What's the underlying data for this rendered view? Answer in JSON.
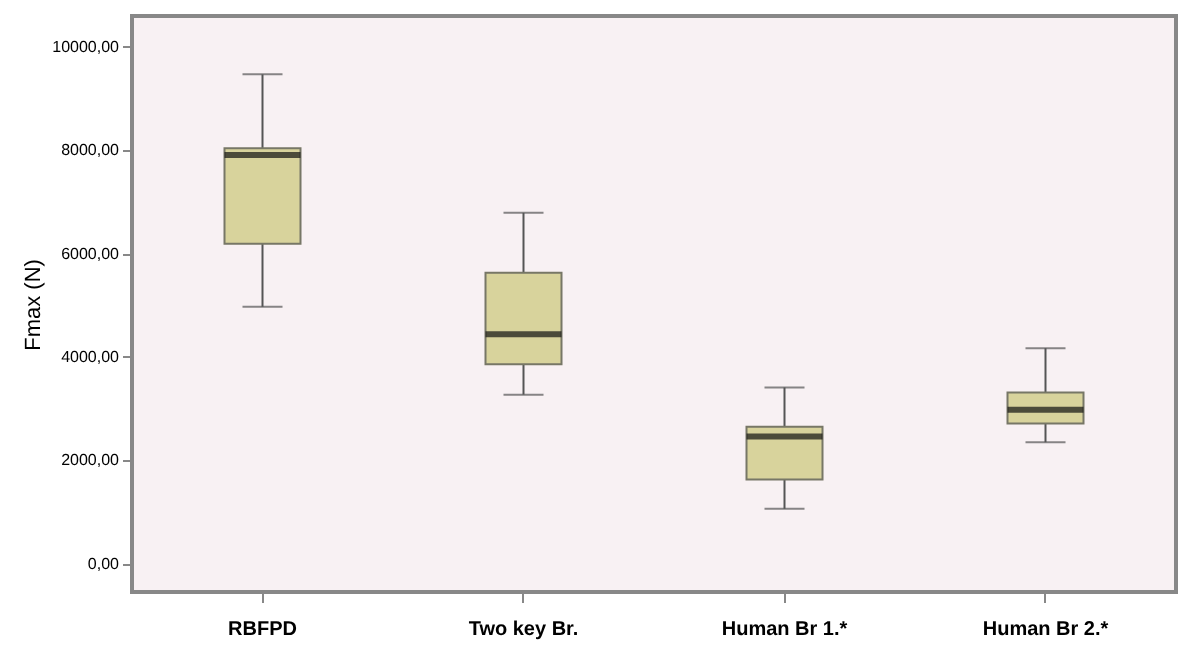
{
  "chart_data": {
    "type": "box",
    "ylabel": "Fmax (N)",
    "categories": [
      "RBFPD",
      "Two key Br.",
      "Human Br 1.*",
      "Human Br 2.*"
    ],
    "boxes": [
      {
        "low": 4970,
        "q1": 6190,
        "median": 7910,
        "q3": 8040,
        "high": 9470
      },
      {
        "low": 3270,
        "q1": 3860,
        "median": 4440,
        "q3": 5630,
        "high": 6790
      },
      {
        "low": 1060,
        "q1": 1630,
        "median": 2460,
        "q3": 2650,
        "high": 3410
      },
      {
        "low": 2350,
        "q1": 2710,
        "median": 2980,
        "q3": 3310,
        "high": 4170
      }
    ],
    "color": "#d8d39c",
    "ylim": [
      -550,
      10600
    ],
    "yticks": [
      {
        "value": 0,
        "label": "0,00"
      },
      {
        "value": 2000,
        "label": "2000,00"
      },
      {
        "value": 4000,
        "label": "4000,00"
      },
      {
        "value": 6000,
        "label": "6000,00"
      },
      {
        "value": 8000,
        "label": "8000,00"
      },
      {
        "value": 10000,
        "label": "10000,00"
      }
    ],
    "grid": false
  }
}
